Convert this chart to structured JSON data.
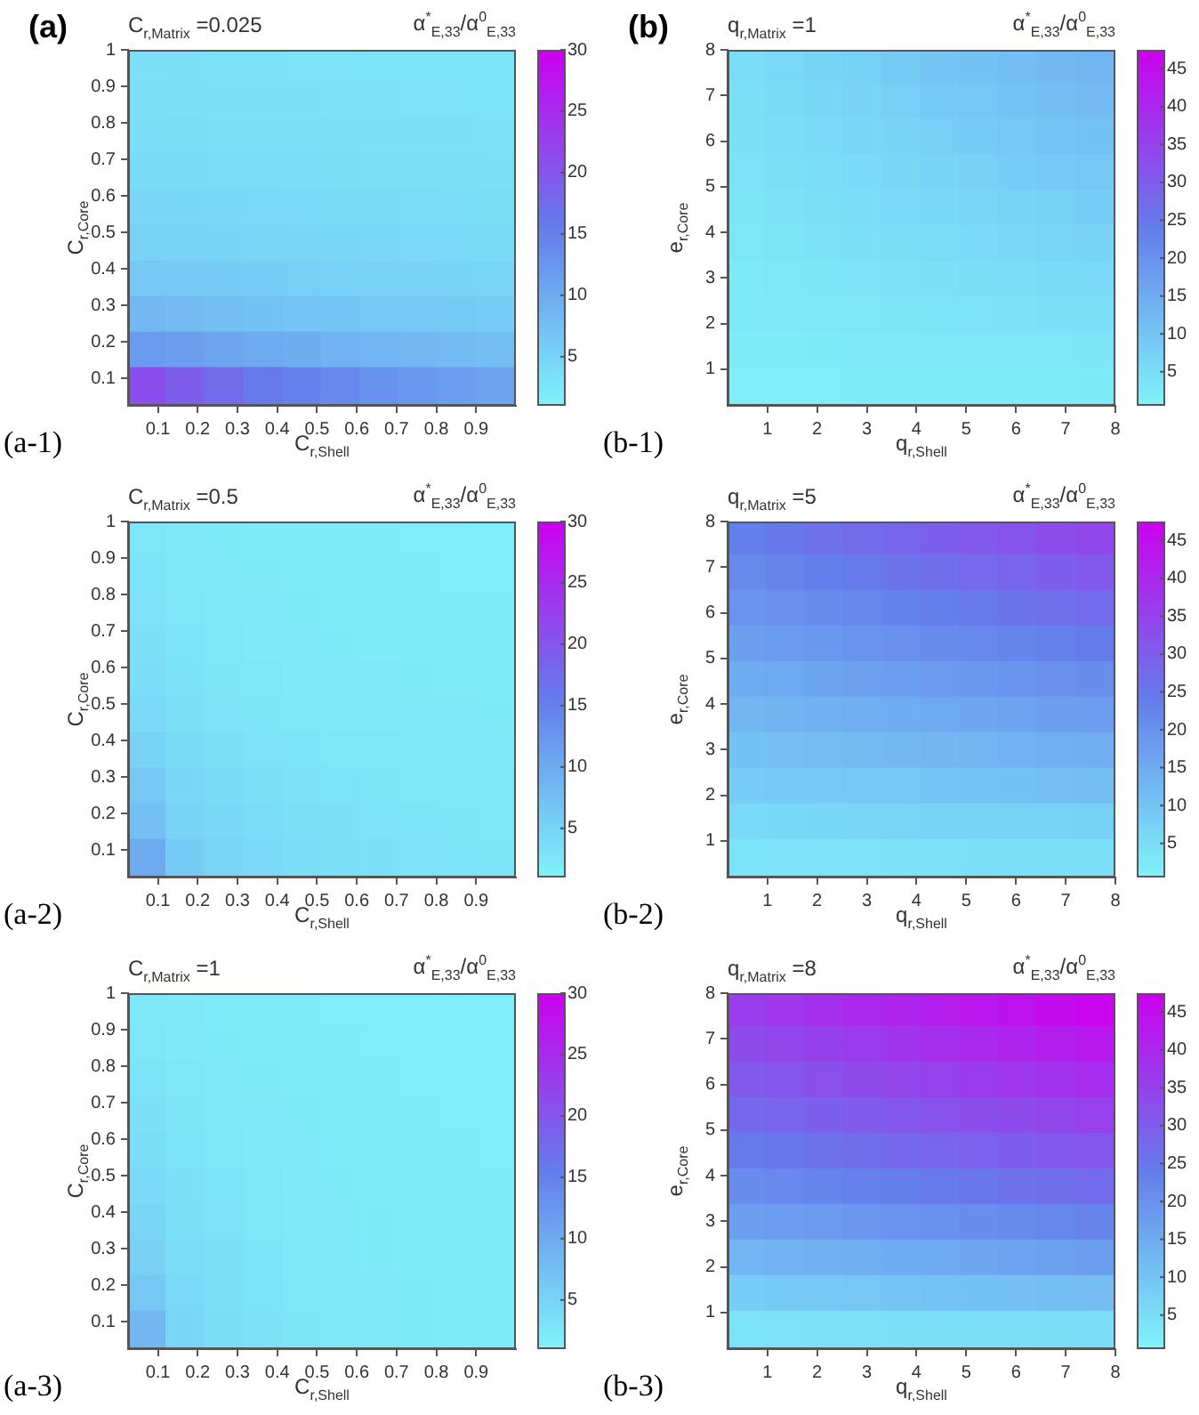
{
  "chart_data": [
    {
      "type": "scatter",
      "marker": "square",
      "title": "C$_{r,Matrix}$ =0.025",
      "clabel": "α$^{*}$$_{E,33}$/α$^{0}$$_{E,33}$",
      "xlabel": "C$_{r,Shell}$",
      "ylabel": "C$_{r,Core}$",
      "annotations": [
        "(a)",
        "(a-1)"
      ],
      "xlim": [
        0.025,
        1
      ],
      "xticks": [
        0.1,
        0.2,
        0.3,
        0.4,
        0.5,
        0.6,
        0.7,
        0.8,
        0.9
      ],
      "ylim": [
        0.025,
        1
      ],
      "yticks": [
        0.1,
        0.2,
        0.3,
        0.4,
        0.5,
        0.6,
        0.7,
        0.8,
        0.9,
        1
      ],
      "clim": [
        1,
        30
      ],
      "cticks": [
        5,
        10,
        15,
        20,
        25,
        30
      ],
      "x": [
        0.074,
        0.171,
        0.269,
        0.366,
        0.464,
        0.561,
        0.659,
        0.756,
        0.854,
        0.951,
        0.074,
        0.171,
        0.269,
        0.366,
        0.464,
        0.561,
        0.659,
        0.756,
        0.854,
        0.951,
        0.074,
        0.171,
        0.269,
        0.366,
        0.464,
        0.561,
        0.659,
        0.756,
        0.854,
        0.951,
        0.074,
        0.171,
        0.269,
        0.366,
        0.464,
        0.561,
        0.659,
        0.756,
        0.854,
        0.951,
        0.074,
        0.171,
        0.269,
        0.366,
        0.464,
        0.561,
        0.659,
        0.756,
        0.854,
        0.951,
        0.074,
        0.171,
        0.269,
        0.366,
        0.464,
        0.561,
        0.659,
        0.756,
        0.854,
        0.951,
        0.074,
        0.171,
        0.269,
        0.366,
        0.464,
        0.561,
        0.659,
        0.756,
        0.854,
        0.951,
        0.074,
        0.171,
        0.269,
        0.366,
        0.464,
        0.561,
        0.659,
        0.756,
        0.854,
        0.951,
        0.074,
        0.171,
        0.269,
        0.366,
        0.464,
        0.561,
        0.659,
        0.756,
        0.854,
        0.951,
        0.074,
        0.171,
        0.269,
        0.366,
        0.464,
        0.561,
        0.659,
        0.756,
        0.854,
        0.951
      ],
      "values": [
        0.951,
        0.951,
        0.951,
        0.951,
        0.951,
        0.951,
        0.951,
        0.951,
        0.951,
        0.951,
        0.854,
        0.854,
        0.854,
        0.854,
        0.854,
        0.854,
        0.854,
        0.854,
        0.854,
        0.854,
        0.756,
        0.756,
        0.756,
        0.756,
        0.756,
        0.756,
        0.756,
        0.756,
        0.756,
        0.756,
        0.659,
        0.659,
        0.659,
        0.659,
        0.659,
        0.659,
        0.659,
        0.659,
        0.659,
        0.659,
        0.561,
        0.561,
        0.561,
        0.561,
        0.561,
        0.561,
        0.561,
        0.561,
        0.561,
        0.561,
        0.464,
        0.464,
        0.464,
        0.464,
        0.464,
        0.464,
        0.464,
        0.464,
        0.464,
        0.464,
        0.366,
        0.366,
        0.366,
        0.366,
        0.366,
        0.366,
        0.366,
        0.366,
        0.366,
        0.366,
        0.269,
        0.269,
        0.269,
        0.269,
        0.269,
        0.269,
        0.269,
        0.269,
        0.269,
        0.269,
        0.171,
        0.171,
        0.171,
        0.171,
        0.171,
        0.171,
        0.171,
        0.171,
        0.171,
        0.171,
        0.074,
        0.074,
        0.074,
        0.074,
        0.074,
        0.074,
        0.074,
        0.074,
        0.074,
        0.074
      ],
      "cvalues": [
        3.3,
        3.3,
        3.2,
        3.2,
        3.1,
        3.1,
        3.0,
        3.0,
        2.9,
        2.9,
        3.5,
        3.4,
        3.4,
        3.3,
        3.3,
        3.2,
        3.2,
        3.1,
        3.1,
        3.0,
        3.8,
        3.7,
        3.6,
        3.6,
        3.5,
        3.4,
        3.4,
        3.3,
        3.3,
        3.2,
        4.1,
        4.0,
        3.9,
        3.9,
        3.8,
        3.7,
        3.6,
        3.6,
        3.5,
        3.4,
        4.6,
        4.5,
        4.4,
        4.3,
        4.2,
        4.1,
        4.0,
        3.9,
        3.8,
        3.7,
        5.2,
        5.1,
        4.9,
        4.8,
        4.7,
        4.6,
        4.4,
        4.3,
        4.2,
        4.1,
        6.3,
        6.1,
        5.9,
        5.7,
        5.5,
        5.3,
        5.2,
        5.0,
        4.9,
        4.8,
        8.2,
        7.8,
        7.5,
        7.2,
        6.9,
        6.7,
        6.4,
        6.2,
        6.0,
        5.8,
        11.8,
        11.2,
        10.6,
        10.0,
        9.6,
        9.1,
        8.7,
        8.3,
        7.9,
        7.6,
        21,
        19,
        17.5,
        16,
        15,
        14,
        13,
        12.2,
        11.5,
        10.8
      ]
    },
    {
      "type": "scatter",
      "marker": "square",
      "title": "q$_{r,Matrix}$ =1",
      "clabel": "α$^{*}$$_{E,33}$/α$^{0}$$_{E,33}$",
      "xlabel": "q$_{r,Shell}$",
      "ylabel": "e$_{r,Core}$",
      "annotations": [
        "(b)",
        "(b-1)"
      ],
      "xlim": [
        0.2,
        8
      ],
      "xticks": [
        1,
        2,
        3,
        4,
        5,
        6,
        7,
        8
      ],
      "ylim": [
        0.2,
        8
      ],
      "yticks": [
        1,
        2,
        3,
        4,
        5,
        6,
        7,
        8
      ],
      "clim": [
        0.5,
        47.5
      ],
      "cticks": [
        5,
        10,
        15,
        20,
        25,
        30,
        35,
        40,
        45
      ],
      "x": [
        0.59,
        1.37,
        2.15,
        2.93,
        3.71,
        4.49,
        5.27,
        6.05,
        6.83,
        7.61,
        0.59,
        1.37,
        2.15,
        2.93,
        3.71,
        4.49,
        5.27,
        6.05,
        6.83,
        7.61,
        0.59,
        1.37,
        2.15,
        2.93,
        3.71,
        4.49,
        5.27,
        6.05,
        6.83,
        7.61,
        0.59,
        1.37,
        2.15,
        2.93,
        3.71,
        4.49,
        5.27,
        6.05,
        6.83,
        7.61,
        0.59,
        1.37,
        2.15,
        2.93,
        3.71,
        4.49,
        5.27,
        6.05,
        6.83,
        7.61,
        0.59,
        1.37,
        2.15,
        2.93,
        3.71,
        4.49,
        5.27,
        6.05,
        6.83,
        7.61,
        0.59,
        1.37,
        2.15,
        2.93,
        3.71,
        4.49,
        5.27,
        6.05,
        6.83,
        7.61,
        0.59,
        1.37,
        2.15,
        2.93,
        3.71,
        4.49,
        5.27,
        6.05,
        6.83,
        7.61,
        0.59,
        1.37,
        2.15,
        2.93,
        3.71,
        4.49,
        5.27,
        6.05,
        6.83,
        7.61,
        0.59,
        1.37,
        2.15,
        2.93,
        3.71,
        4.49,
        5.27,
        6.05,
        6.83,
        7.61
      ],
      "values": [
        7.61,
        7.61,
        7.61,
        7.61,
        7.61,
        7.61,
        7.61,
        7.61,
        7.61,
        7.61,
        6.83,
        6.83,
        6.83,
        6.83,
        6.83,
        6.83,
        6.83,
        6.83,
        6.83,
        6.83,
        6.05,
        6.05,
        6.05,
        6.05,
        6.05,
        6.05,
        6.05,
        6.05,
        6.05,
        6.05,
        5.27,
        5.27,
        5.27,
        5.27,
        5.27,
        5.27,
        5.27,
        5.27,
        5.27,
        5.27,
        4.49,
        4.49,
        4.49,
        4.49,
        4.49,
        4.49,
        4.49,
        4.49,
        4.49,
        4.49,
        3.71,
        3.71,
        3.71,
        3.71,
        3.71,
        3.71,
        3.71,
        3.71,
        3.71,
        3.71,
        2.93,
        2.93,
        2.93,
        2.93,
        2.93,
        2.93,
        2.93,
        2.93,
        2.93,
        2.93,
        2.15,
        2.15,
        2.15,
        2.15,
        2.15,
        2.15,
        2.15,
        2.15,
        2.15,
        2.15,
        1.37,
        1.37,
        1.37,
        1.37,
        1.37,
        1.37,
        1.37,
        1.37,
        1.37,
        1.37,
        0.59,
        0.59,
        0.59,
        0.59,
        0.59,
        0.59,
        0.59,
        0.59,
        0.59,
        0.59
      ],
      "cvalues": [
        5.0,
        5.9,
        6.8,
        7.7,
        8.6,
        9.5,
        10.3,
        11.2,
        12.1,
        13.0,
        4.6,
        5.4,
        6.2,
        7.0,
        7.8,
        8.6,
        9.4,
        10.2,
        11.0,
        11.8,
        4.3,
        5.0,
        5.7,
        6.4,
        7.1,
        7.8,
        8.5,
        9.2,
        9.9,
        10.6,
        3.9,
        4.5,
        5.1,
        5.7,
        6.3,
        6.9,
        7.6,
        8.2,
        8.8,
        9.4,
        3.5,
        4.0,
        4.5,
        5.1,
        5.6,
        6.1,
        6.6,
        7.2,
        7.7,
        8.2,
        3.1,
        3.5,
        4.0,
        4.4,
        4.8,
        5.3,
        5.7,
        6.1,
        6.6,
        7.0,
        2.7,
        3.1,
        3.4,
        3.8,
        4.1,
        4.4,
        4.8,
        5.1,
        5.5,
        5.8,
        2.4,
        2.6,
        2.9,
        3.1,
        3.4,
        3.6,
        3.9,
        4.1,
        4.4,
        4.6,
        2.0,
        2.1,
        2.3,
        2.4,
        2.6,
        2.8,
        2.9,
        3.1,
        3.2,
        3.4,
        1.6,
        1.7,
        1.7,
        1.8,
        1.9,
        1.9,
        2.0,
        2.1,
        2.1,
        2.2
      ]
    },
    {
      "type": "scatter",
      "marker": "square",
      "title": "C$_{r,Matrix}$ =0.5",
      "clabel": "α$^{*}$$_{E,33}$/α$^{0}$$_{E,33}$",
      "xlabel": "C$_{r,Shell}$",
      "ylabel": "C$_{r,Core}$",
      "annotations": [
        "(a-2)"
      ],
      "xlim": [
        0.025,
        1
      ],
      "xticks": [
        0.1,
        0.2,
        0.3,
        0.4,
        0.5,
        0.6,
        0.7,
        0.8,
        0.9
      ],
      "ylim": [
        0.025,
        1
      ],
      "yticks": [
        0.1,
        0.2,
        0.3,
        0.4,
        0.5,
        0.6,
        0.7,
        0.8,
        0.9,
        1
      ],
      "clim": [
        1,
        30
      ],
      "cticks": [
        5,
        10,
        15,
        20,
        25,
        30
      ],
      "x": [
        0.074,
        0.171,
        0.269,
        0.366,
        0.464,
        0.561,
        0.659,
        0.756,
        0.854,
        0.951,
        0.074,
        0.171,
        0.269,
        0.366,
        0.464,
        0.561,
        0.659,
        0.756,
        0.854,
        0.951,
        0.074,
        0.171,
        0.269,
        0.366,
        0.464,
        0.561,
        0.659,
        0.756,
        0.854,
        0.951,
        0.074,
        0.171,
        0.269,
        0.366,
        0.464,
        0.561,
        0.659,
        0.756,
        0.854,
        0.951,
        0.074,
        0.171,
        0.269,
        0.366,
        0.464,
        0.561,
        0.659,
        0.756,
        0.854,
        0.951,
        0.074,
        0.171,
        0.269,
        0.366,
        0.464,
        0.561,
        0.659,
        0.756,
        0.854,
        0.951,
        0.074,
        0.171,
        0.269,
        0.366,
        0.464,
        0.561,
        0.659,
        0.756,
        0.854,
        0.951,
        0.074,
        0.171,
        0.269,
        0.366,
        0.464,
        0.561,
        0.659,
        0.756,
        0.854,
        0.951,
        0.074,
        0.171,
        0.269,
        0.366,
        0.464,
        0.561,
        0.659,
        0.756,
        0.854,
        0.951,
        0.074,
        0.171,
        0.269,
        0.366,
        0.464,
        0.561,
        0.659,
        0.756,
        0.854,
        0.951
      ],
      "values": [
        0.951,
        0.951,
        0.951,
        0.951,
        0.951,
        0.951,
        0.951,
        0.951,
        0.951,
        0.951,
        0.854,
        0.854,
        0.854,
        0.854,
        0.854,
        0.854,
        0.854,
        0.854,
        0.854,
        0.854,
        0.756,
        0.756,
        0.756,
        0.756,
        0.756,
        0.756,
        0.756,
        0.756,
        0.756,
        0.756,
        0.659,
        0.659,
        0.659,
        0.659,
        0.659,
        0.659,
        0.659,
        0.659,
        0.659,
        0.659,
        0.561,
        0.561,
        0.561,
        0.561,
        0.561,
        0.561,
        0.561,
        0.561,
        0.561,
        0.561,
        0.464,
        0.464,
        0.464,
        0.464,
        0.464,
        0.464,
        0.464,
        0.464,
        0.464,
        0.464,
        0.366,
        0.366,
        0.366,
        0.366,
        0.366,
        0.366,
        0.366,
        0.366,
        0.366,
        0.366,
        0.269,
        0.269,
        0.269,
        0.269,
        0.269,
        0.269,
        0.269,
        0.269,
        0.269,
        0.269,
        0.171,
        0.171,
        0.171,
        0.171,
        0.171,
        0.171,
        0.171,
        0.171,
        0.171,
        0.171,
        0.074,
        0.074,
        0.074,
        0.074,
        0.074,
        0.074,
        0.074,
        0.074,
        0.074,
        0.074
      ],
      "cvalues": [
        2.7,
        2.3,
        2.1,
        2.0,
        1.9,
        1.8,
        1.8,
        1.7,
        1.7,
        1.6,
        2.9,
        2.5,
        2.2,
        2.1,
        2.0,
        1.9,
        1.8,
        1.8,
        1.7,
        1.7,
        3.1,
        2.7,
        2.4,
        2.2,
        2.1,
        2.0,
        1.9,
        1.9,
        1.8,
        1.8,
        3.4,
        2.9,
        2.6,
        2.4,
        2.2,
        2.1,
        2.0,
        2.0,
        1.9,
        1.9,
        3.8,
        3.2,
        2.8,
        2.6,
        2.4,
        2.3,
        2.2,
        2.1,
        2.0,
        2.0,
        4.3,
        3.5,
        3.1,
        2.8,
        2.6,
        2.4,
        2.3,
        2.2,
        2.2,
        2.1,
        5.1,
        4.0,
        3.5,
        3.1,
        2.9,
        2.7,
        2.6,
        2.5,
        2.4,
        2.3,
        6.5,
        4.7,
        4.0,
        3.5,
        3.2,
        3.0,
        2.8,
        2.7,
        2.6,
        2.5,
        7.4,
        5.0,
        4.4,
        3.9,
        3.5,
        3.3,
        3.1,
        2.9,
        2.8,
        2.7,
        10,
        6.0,
        4.8,
        4.2,
        3.8,
        3.5,
        3.3,
        3.1,
        2.9,
        2.8
      ]
    },
    {
      "type": "scatter",
      "marker": "square",
      "title": "q$_{r,Matrix}$ =5",
      "clabel": "α$^{*}$$_{E,33}$/α$^{0}$$_{E,33}$",
      "xlabel": "q$_{r,Shell}$",
      "ylabel": "e$_{r,Core}$",
      "annotations": [
        "(b-2)"
      ],
      "xlim": [
        0.2,
        8
      ],
      "xticks": [
        1,
        2,
        3,
        4,
        5,
        6,
        7,
        8
      ],
      "ylim": [
        0.2,
        8
      ],
      "yticks": [
        1,
        2,
        3,
        4,
        5,
        6,
        7,
        8
      ],
      "clim": [
        0.5,
        47.5
      ],
      "cticks": [
        5,
        10,
        15,
        20,
        25,
        30,
        35,
        40,
        45
      ],
      "x": [
        0.59,
        1.37,
        2.15,
        2.93,
        3.71,
        4.49,
        5.27,
        6.05,
        6.83,
        7.61,
        0.59,
        1.37,
        2.15,
        2.93,
        3.71,
        4.49,
        5.27,
        6.05,
        6.83,
        7.61,
        0.59,
        1.37,
        2.15,
        2.93,
        3.71,
        4.49,
        5.27,
        6.05,
        6.83,
        7.61,
        0.59,
        1.37,
        2.15,
        2.93,
        3.71,
        4.49,
        5.27,
        6.05,
        6.83,
        7.61,
        0.59,
        1.37,
        2.15,
        2.93,
        3.71,
        4.49,
        5.27,
        6.05,
        6.83,
        7.61,
        0.59,
        1.37,
        2.15,
        2.93,
        3.71,
        4.49,
        5.27,
        6.05,
        6.83,
        7.61,
        0.59,
        1.37,
        2.15,
        2.93,
        3.71,
        4.49,
        5.27,
        6.05,
        6.83,
        7.61,
        0.59,
        1.37,
        2.15,
        2.93,
        3.71,
        4.49,
        5.27,
        6.05,
        6.83,
        7.61,
        0.59,
        1.37,
        2.15,
        2.93,
        3.71,
        4.49,
        5.27,
        6.05,
        6.83,
        7.61,
        0.59,
        1.37,
        2.15,
        2.93,
        3.71,
        4.49,
        5.27,
        6.05,
        6.83,
        7.61
      ],
      "values": [
        7.61,
        7.61,
        7.61,
        7.61,
        7.61,
        7.61,
        7.61,
        7.61,
        7.61,
        7.61,
        6.83,
        6.83,
        6.83,
        6.83,
        6.83,
        6.83,
        6.83,
        6.83,
        6.83,
        6.83,
        6.05,
        6.05,
        6.05,
        6.05,
        6.05,
        6.05,
        6.05,
        6.05,
        6.05,
        6.05,
        5.27,
        5.27,
        5.27,
        5.27,
        5.27,
        5.27,
        5.27,
        5.27,
        5.27,
        5.27,
        4.49,
        4.49,
        4.49,
        4.49,
        4.49,
        4.49,
        4.49,
        4.49,
        4.49,
        4.49,
        3.71,
        3.71,
        3.71,
        3.71,
        3.71,
        3.71,
        3.71,
        3.71,
        3.71,
        3.71,
        2.93,
        2.93,
        2.93,
        2.93,
        2.93,
        2.93,
        2.93,
        2.93,
        2.93,
        2.93,
        2.15,
        2.15,
        2.15,
        2.15,
        2.15,
        2.15,
        2.15,
        2.15,
        2.15,
        2.15,
        1.37,
        1.37,
        1.37,
        1.37,
        1.37,
        1.37,
        1.37,
        1.37,
        1.37,
        1.37,
        0.59,
        0.59,
        0.59,
        0.59,
        0.59,
        0.59,
        0.59,
        0.59,
        0.59,
        0.59
      ],
      "cvalues": [
        23.8,
        24.9,
        26.0,
        27.2,
        28.3,
        29.4,
        30.5,
        31.7,
        32.8,
        33.9,
        21.5,
        22.6,
        23.6,
        24.6,
        25.6,
        26.6,
        27.6,
        28.6,
        29.6,
        30.6,
        19.3,
        20.2,
        21.1,
        22.0,
        22.9,
        23.8,
        24.7,
        25.6,
        26.5,
        27.4,
        17.1,
        17.9,
        18.6,
        19.4,
        20.2,
        21.0,
        21.8,
        22.5,
        23.3,
        24.1,
        14.9,
        15.5,
        16.2,
        16.8,
        17.5,
        18.2,
        18.8,
        19.5,
        20.2,
        20.8,
        12.6,
        13.2,
        13.7,
        14.3,
        14.8,
        15.4,
        15.9,
        16.5,
        17.0,
        17.6,
        10.4,
        10.8,
        11.3,
        11.7,
        12.1,
        12.6,
        13.0,
        13.4,
        13.9,
        14.3,
        8.2,
        8.5,
        8.8,
        9.1,
        9.4,
        9.7,
        10.1,
        10.4,
        10.7,
        11.0,
        5.9,
        6.1,
        6.3,
        6.5,
        6.7,
        6.9,
        7.1,
        7.3,
        7.5,
        7.7,
        3.7,
        3.8,
        3.9,
        3.9,
        4.0,
        4.1,
        4.2,
        4.3,
        4.4,
        4.5
      ]
    },
    {
      "type": "scatter",
      "marker": "square",
      "title": "C$_{r,Matrix}$ =1",
      "clabel": "α$^{*}$$_{E,33}$/α$^{0}$$_{E,33}$",
      "xlabel": "C$_{r,Shell}$",
      "ylabel": "C$_{r,Core}$",
      "annotations": [
        "(a-3)"
      ],
      "xlim": [
        0.025,
        1
      ],
      "xticks": [
        0.1,
        0.2,
        0.3,
        0.4,
        0.5,
        0.6,
        0.7,
        0.8,
        0.9
      ],
      "ylim": [
        0.025,
        1
      ],
      "yticks": [
        0.1,
        0.2,
        0.3,
        0.4,
        0.5,
        0.6,
        0.7,
        0.8,
        0.9,
        1
      ],
      "clim": [
        1,
        30
      ],
      "cticks": [
        5,
        10,
        15,
        20,
        25,
        30
      ],
      "x": [
        0.074,
        0.171,
        0.269,
        0.366,
        0.464,
        0.561,
        0.659,
        0.756,
        0.854,
        0.951,
        0.074,
        0.171,
        0.269,
        0.366,
        0.464,
        0.561,
        0.659,
        0.756,
        0.854,
        0.951,
        0.074,
        0.171,
        0.269,
        0.366,
        0.464,
        0.561,
        0.659,
        0.756,
        0.854,
        0.951,
        0.074,
        0.171,
        0.269,
        0.366,
        0.464,
        0.561,
        0.659,
        0.756,
        0.854,
        0.951,
        0.074,
        0.171,
        0.269,
        0.366,
        0.464,
        0.561,
        0.659,
        0.756,
        0.854,
        0.951,
        0.074,
        0.171,
        0.269,
        0.366,
        0.464,
        0.561,
        0.659,
        0.756,
        0.854,
        0.951,
        0.074,
        0.171,
        0.269,
        0.366,
        0.464,
        0.561,
        0.659,
        0.756,
        0.854,
        0.951,
        0.074,
        0.171,
        0.269,
        0.366,
        0.464,
        0.561,
        0.659,
        0.756,
        0.854,
        0.951,
        0.074,
        0.171,
        0.269,
        0.366,
        0.464,
        0.561,
        0.659,
        0.756,
        0.854,
        0.951,
        0.074,
        0.171,
        0.269,
        0.366,
        0.464,
        0.561,
        0.659,
        0.756,
        0.854,
        0.951
      ],
      "values": [
        0.951,
        0.951,
        0.951,
        0.951,
        0.951,
        0.951,
        0.951,
        0.951,
        0.951,
        0.951,
        0.854,
        0.854,
        0.854,
        0.854,
        0.854,
        0.854,
        0.854,
        0.854,
        0.854,
        0.854,
        0.756,
        0.756,
        0.756,
        0.756,
        0.756,
        0.756,
        0.756,
        0.756,
        0.756,
        0.756,
        0.659,
        0.659,
        0.659,
        0.659,
        0.659,
        0.659,
        0.659,
        0.659,
        0.659,
        0.659,
        0.561,
        0.561,
        0.561,
        0.561,
        0.561,
        0.561,
        0.561,
        0.561,
        0.561,
        0.561,
        0.464,
        0.464,
        0.464,
        0.464,
        0.464,
        0.464,
        0.464,
        0.464,
        0.464,
        0.464,
        0.366,
        0.366,
        0.366,
        0.366,
        0.366,
        0.366,
        0.366,
        0.366,
        0.366,
        0.366,
        0.269,
        0.269,
        0.269,
        0.269,
        0.269,
        0.269,
        0.269,
        0.269,
        0.269,
        0.269,
        0.171,
        0.171,
        0.171,
        0.171,
        0.171,
        0.171,
        0.171,
        0.171,
        0.171,
        0.171,
        0.074,
        0.074,
        0.074,
        0.074,
        0.074,
        0.074,
        0.074,
        0.074,
        0.074,
        0.074
      ],
      "cvalues": [
        2.5,
        2.2,
        2.0,
        1.9,
        1.8,
        1.7,
        1.7,
        1.6,
        1.6,
        1.6,
        2.7,
        2.4,
        2.1,
        2.0,
        1.9,
        1.8,
        1.7,
        1.7,
        1.6,
        1.6,
        3.0,
        2.6,
        2.3,
        2.1,
        2.0,
        1.9,
        1.8,
        1.7,
        1.7,
        1.6,
        3.3,
        2.8,
        2.5,
        2.2,
        2.1,
        2.0,
        1.9,
        1.8,
        1.7,
        1.7,
        3.7,
        3.0,
        2.7,
        2.4,
        2.2,
        2.0,
        1.9,
        1.8,
        1.8,
        1.7,
        4.2,
        3.3,
        2.9,
        2.6,
        2.3,
        2.1,
        2.0,
        1.9,
        1.8,
        1.8,
        4.8,
        3.6,
        3.1,
        2.7,
        2.4,
        2.2,
        2.1,
        2.0,
        1.9,
        1.8,
        5.4,
        3.9,
        3.3,
        2.9,
        2.5,
        2.3,
        2.1,
        2.0,
        1.9,
        1.9,
        6.5,
        4.3,
        3.5,
        3.0,
        2.6,
        2.4,
        2.2,
        2.1,
        2.0,
        1.9,
        8.5,
        4.7,
        3.7,
        3.2,
        2.8,
        2.5,
        2.3,
        2.1,
        2.0,
        1.9
      ]
    },
    {
      "type": "scatter",
      "marker": "square",
      "title": "q$_{r,Matrix}$ =8",
      "clabel": "α$^{*}$$_{E,33}$/α$^{0}$$_{E,33}$",
      "xlabel": "q$_{r,Shell}$",
      "ylabel": "e$_{r,Core}$",
      "annotations": [
        "(b-3)"
      ],
      "xlim": [
        0.2,
        8
      ],
      "xticks": [
        1,
        2,
        3,
        4,
        5,
        6,
        7,
        8
      ],
      "ylim": [
        0.2,
        8
      ],
      "yticks": [
        1,
        2,
        3,
        4,
        5,
        6,
        7,
        8
      ],
      "clim": [
        0.5,
        47.5
      ],
      "cticks": [
        5,
        10,
        15,
        20,
        25,
        30,
        35,
        40,
        45
      ],
      "x": [
        0.59,
        1.37,
        2.15,
        2.93,
        3.71,
        4.49,
        5.27,
        6.05,
        6.83,
        7.61,
        0.59,
        1.37,
        2.15,
        2.93,
        3.71,
        4.49,
        5.27,
        6.05,
        6.83,
        7.61,
        0.59,
        1.37,
        2.15,
        2.93,
        3.71,
        4.49,
        5.27,
        6.05,
        6.83,
        7.61,
        0.59,
        1.37,
        2.15,
        2.93,
        3.71,
        4.49,
        5.27,
        6.05,
        6.83,
        7.61,
        0.59,
        1.37,
        2.15,
        2.93,
        3.71,
        4.49,
        5.27,
        6.05,
        6.83,
        7.61,
        0.59,
        1.37,
        2.15,
        2.93,
        3.71,
        4.49,
        5.27,
        6.05,
        6.83,
        7.61,
        0.59,
        1.37,
        2.15,
        2.93,
        3.71,
        4.49,
        5.27,
        6.05,
        6.83,
        7.61,
        0.59,
        1.37,
        2.15,
        2.93,
        3.71,
        4.49,
        5.27,
        6.05,
        6.83,
        7.61,
        0.59,
        1.37,
        2.15,
        2.93,
        3.71,
        4.49,
        5.27,
        6.05,
        6.83,
        7.61,
        0.59,
        1.37,
        2.15,
        2.93,
        3.71,
        4.49,
        5.27,
        6.05,
        6.83,
        7.61
      ],
      "values": [
        7.61,
        7.61,
        7.61,
        7.61,
        7.61,
        7.61,
        7.61,
        7.61,
        7.61,
        7.61,
        6.83,
        6.83,
        6.83,
        6.83,
        6.83,
        6.83,
        6.83,
        6.83,
        6.83,
        6.83,
        6.05,
        6.05,
        6.05,
        6.05,
        6.05,
        6.05,
        6.05,
        6.05,
        6.05,
        6.05,
        5.27,
        5.27,
        5.27,
        5.27,
        5.27,
        5.27,
        5.27,
        5.27,
        5.27,
        5.27,
        4.49,
        4.49,
        4.49,
        4.49,
        4.49,
        4.49,
        4.49,
        4.49,
        4.49,
        4.49,
        3.71,
        3.71,
        3.71,
        3.71,
        3.71,
        3.71,
        3.71,
        3.71,
        3.71,
        3.71,
        2.93,
        2.93,
        2.93,
        2.93,
        2.93,
        2.93,
        2.93,
        2.93,
        2.93,
        2.93,
        2.15,
        2.15,
        2.15,
        2.15,
        2.15,
        2.15,
        2.15,
        2.15,
        2.15,
        2.15,
        1.37,
        1.37,
        1.37,
        1.37,
        1.37,
        1.37,
        1.37,
        1.37,
        1.37,
        1.37,
        0.59,
        0.59,
        0.59,
        0.59,
        0.59,
        0.59,
        0.59,
        0.59,
        0.59,
        0.59
      ],
      "cvalues": [
        36.1,
        37.2,
        38.4,
        39.6,
        40.8,
        41.9,
        43.1,
        44.2,
        45.4,
        46.6,
        33.4,
        34.4,
        35.4,
        36.5,
        37.6,
        38.6,
        39.6,
        40.7,
        41.8,
        42.8,
        30.6,
        31.6,
        32.5,
        33.4,
        34.4,
        35.3,
        36.2,
        37.1,
        38.1,
        39.0,
        27.7,
        28.6,
        29.5,
        30.4,
        31.2,
        32.0,
        32.8,
        33.6,
        34.4,
        35.2,
        24.5,
        25.4,
        26.1,
        26.9,
        27.7,
        28.5,
        29.3,
        30.0,
        30.7,
        31.4,
        20.9,
        21.6,
        22.4,
        23.2,
        23.9,
        24.7,
        25.4,
        26.0,
        26.7,
        27.3,
        17.0,
        17.6,
        18.3,
        19.0,
        19.6,
        20.3,
        20.9,
        21.5,
        22.1,
        22.7,
        12.8,
        13.3,
        13.9,
        14.4,
        14.9,
        15.4,
        15.9,
        16.4,
        16.9,
        17.4,
        8.2,
        8.6,
        9.0,
        9.3,
        9.7,
        10.1,
        10.4,
        10.7,
        11.1,
        11.4,
        3.7,
        3.8,
        4.0,
        4.1,
        4.3,
        4.4,
        4.5,
        4.7,
        4.8,
        5.0
      ]
    }
  ]
}
